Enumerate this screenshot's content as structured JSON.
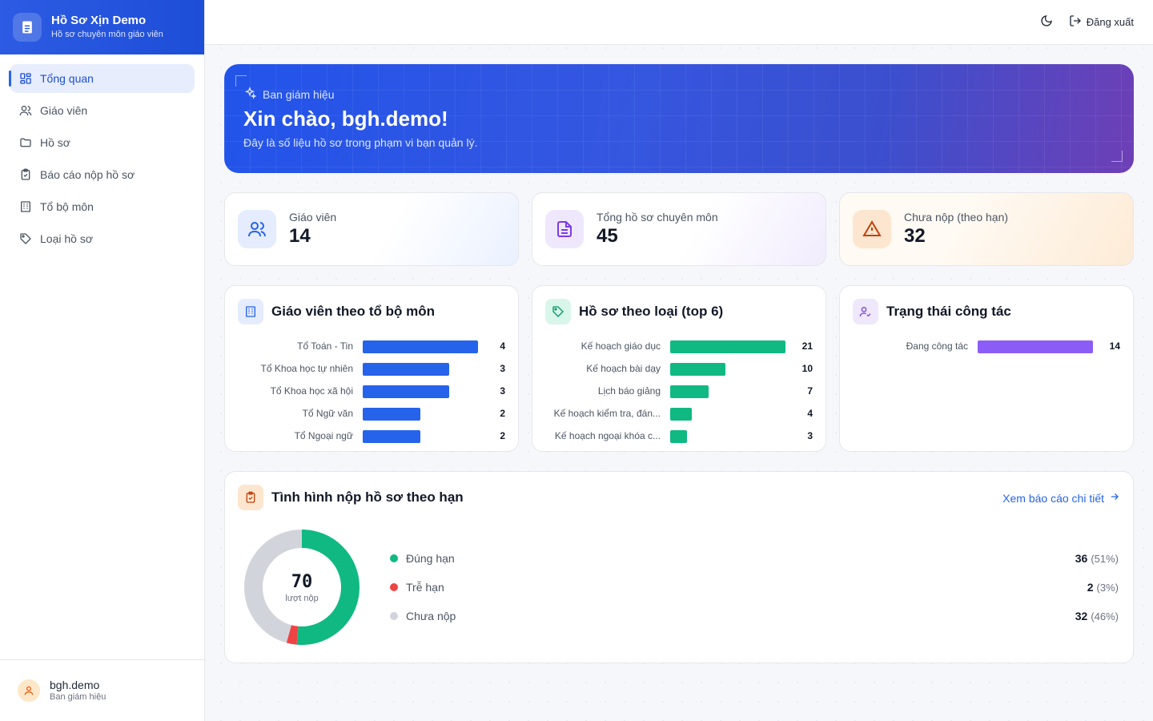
{
  "brand": {
    "title": "Hồ Sơ Xịn Demo",
    "subtitle": "Hồ sơ chuyên môn giáo viên"
  },
  "sidebar": {
    "items": [
      {
        "label": "Tổng quan",
        "icon": "dashboard-icon",
        "active": true
      },
      {
        "label": "Giáo viên",
        "icon": "users-icon"
      },
      {
        "label": "Hồ sơ",
        "icon": "folder-icon"
      },
      {
        "label": "Báo cáo nộp hồ sơ",
        "icon": "clipboard-icon"
      },
      {
        "label": "Tổ bộ môn",
        "icon": "building-icon"
      },
      {
        "label": "Loại hồ sơ",
        "icon": "tag-icon"
      }
    ]
  },
  "user": {
    "name": "bgh.demo",
    "role": "Ban giám hiệu"
  },
  "topbar": {
    "logout_label": "Đăng xuất"
  },
  "hero": {
    "role": "Ban giám hiệu",
    "title": "Xin chào, bgh.demo!",
    "description": "Đây là số liệu hồ sơ trong phạm vi bạn quản lý."
  },
  "stats": [
    {
      "label": "Giáo viên",
      "value": "14",
      "color": "#2563eb"
    },
    {
      "label": "Tổng hồ sơ chuyên môn",
      "value": "45",
      "color": "#7c3aed"
    },
    {
      "label": "Chưa nộp (theo hạn)",
      "value": "32",
      "color": "#c2410c"
    }
  ],
  "chart_data": [
    {
      "type": "bar",
      "title": "Giáo viên theo tổ bộ môn",
      "orientation": "horizontal",
      "color": "#2563eb",
      "categories": [
        "Tổ Toán - Tin",
        "Tổ Khoa học tự nhiên",
        "Tổ Khoa học xã hội",
        "Tổ Ngữ văn",
        "Tổ Ngoại ngữ"
      ],
      "values": [
        4,
        3,
        3,
        2,
        2
      ]
    },
    {
      "type": "bar",
      "title": "Hồ sơ theo loại (top 6)",
      "orientation": "horizontal",
      "color": "#10b981",
      "categories": [
        "Kế hoạch giáo dục",
        "Kế hoạch bài dạy",
        "Lịch báo giảng",
        "Kế hoạch kiểm tra, đán...",
        "Kế hoạch ngoại khóa c..."
      ],
      "values": [
        21,
        10,
        7,
        4,
        3
      ]
    },
    {
      "type": "bar",
      "title": "Trạng thái công tác",
      "orientation": "horizontal",
      "color": "#8b5cf6",
      "categories": [
        "Đang công tác"
      ],
      "values": [
        14
      ]
    },
    {
      "type": "pie",
      "title": "Tình hình nộp hồ sơ theo hạn",
      "center_value": "70",
      "center_label": "lượt nộp",
      "slices": [
        {
          "name": "Đúng hạn",
          "value": 36,
          "percent": "(51%)",
          "color": "#10b981"
        },
        {
          "name": "Trễ hạn",
          "value": 2,
          "percent": "(3%)",
          "color": "#ef4444"
        },
        {
          "name": "Chưa nộp",
          "value": 32,
          "percent": "(46%)",
          "color": "#d1d5db"
        }
      ]
    }
  ],
  "submission": {
    "detail_link": "Xem báo cáo chi tiết"
  }
}
